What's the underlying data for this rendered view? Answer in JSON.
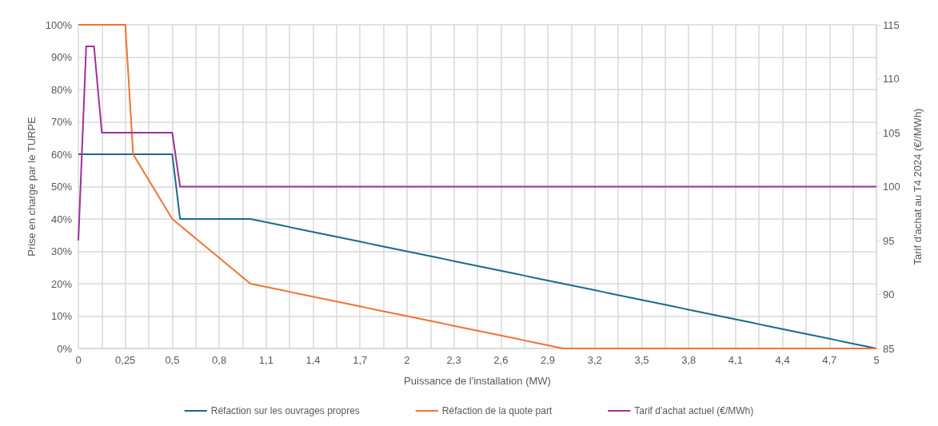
{
  "chart_data": {
    "type": "line",
    "xlabel": "Puissance de l'installation (MW)",
    "ylabel": "Prise en charge par le TURPE",
    "y2label": "Tarif d'achat au T4 2024 (€//MWh)",
    "categories": [
      "0",
      null,
      null,
      null,
      null,
      null,
      "0,25",
      null,
      null,
      null,
      null,
      null,
      "0,5",
      null,
      null,
      null,
      null,
      null,
      "0,8",
      null,
      null,
      null,
      null,
      null,
      "1,1",
      null,
      null,
      null,
      null,
      null,
      "1,4",
      null,
      null,
      null,
      null,
      null,
      "1,7",
      null,
      null,
      null,
      null,
      null,
      "2",
      null,
      null,
      null,
      null,
      null,
      "2,3",
      null,
      null,
      null,
      null,
      null,
      "2,6",
      null,
      null,
      null,
      null,
      null,
      "2,9",
      null,
      null,
      null,
      null,
      null,
      "3,2",
      null,
      null,
      null,
      null,
      null,
      "3,5",
      null,
      null,
      null,
      null,
      null,
      "3,8",
      null,
      null,
      null,
      null,
      null,
      "4,1",
      null,
      null,
      null,
      null,
      null,
      "4,4",
      null,
      null,
      null,
      null,
      null,
      "4,7",
      null,
      null,
      null,
      null,
      null,
      "5"
    ],
    "series": [
      {
        "name": "Réfaction sur les ouvrages propres",
        "color": "#1b6a8c",
        "values": [
          60,
          60,
          60,
          60,
          60,
          60,
          60,
          60,
          60,
          60,
          60,
          60,
          60,
          40,
          40,
          40,
          40,
          40,
          40,
          40,
          40,
          40,
          40,
          39.5,
          39,
          38.5,
          38,
          37.5,
          37,
          36.5,
          36,
          35.5,
          35,
          34.5,
          34,
          33.5,
          33,
          32.5,
          32,
          31.5,
          31,
          30.5,
          30,
          29.5,
          29,
          28.5,
          28,
          27.5,
          27,
          26.5,
          26,
          25.5,
          25,
          24.5,
          24,
          23.5,
          23,
          22.5,
          22,
          21.5,
          21,
          20.5,
          20,
          19.5,
          19,
          18.5,
          18,
          17.5,
          17,
          16.5,
          16,
          15.5,
          15,
          14.5,
          14,
          13.5,
          13,
          12.5,
          12,
          11.5,
          11,
          10.5,
          10,
          9.5,
          9,
          8.5,
          8,
          7.5,
          7,
          6.5,
          6,
          5.5,
          5,
          4.5,
          4,
          3.5,
          3,
          2.5,
          2,
          1.5,
          1,
          0.5,
          0
        ]
      },
      {
        "name": "Réfaction de la quote part",
        "color": "#ef7433",
        "values": [
          100,
          100,
          100,
          100,
          100,
          100,
          100,
          60,
          56,
          52,
          48,
          44,
          40,
          38,
          36,
          34,
          32,
          30,
          28,
          26,
          24,
          22,
          20,
          19.5,
          19,
          18.5,
          18,
          17.5,
          17,
          16.5,
          16,
          15.5,
          15,
          14.5,
          14,
          13.5,
          13,
          12.5,
          12,
          11.5,
          11,
          10.5,
          10,
          9.5,
          9,
          8.5,
          8,
          7.5,
          7,
          6.5,
          6,
          5.5,
          5,
          4.5,
          4,
          3.5,
          3,
          2.5,
          2,
          1.5,
          1,
          0.5,
          0,
          0,
          0,
          0,
          0,
          0,
          0,
          0,
          0,
          0,
          0,
          0,
          0,
          0,
          0,
          0,
          0,
          0,
          0,
          0,
          0,
          0,
          0,
          0,
          0,
          0,
          0,
          0,
          0,
          0,
          0,
          0,
          0,
          0,
          0,
          0,
          0,
          0,
          0,
          0,
          0
        ]
      },
      {
        "name": "Tarif d'achat actuel (€/MWh)",
        "color": "#a0309a",
        "axis": "y2",
        "values": [
          95,
          113,
          113,
          105,
          105,
          105,
          105,
          105,
          105,
          105,
          105,
          105,
          105,
          100,
          100,
          100,
          100,
          100,
          100,
          100,
          100,
          100,
          100,
          100,
          100,
          100,
          100,
          100,
          100,
          100,
          100,
          100,
          100,
          100,
          100,
          100,
          100,
          100,
          100,
          100,
          100,
          100,
          100,
          100,
          100,
          100,
          100,
          100,
          100,
          100,
          100,
          100,
          100,
          100,
          100,
          100,
          100,
          100,
          100,
          100,
          100,
          100,
          100,
          100,
          100,
          100,
          100,
          100,
          100,
          100,
          100,
          100,
          100,
          100,
          100,
          100,
          100,
          100,
          100,
          100,
          100,
          100,
          100,
          100,
          100,
          100,
          100,
          100,
          100,
          100,
          100,
          100,
          100,
          100,
          100,
          100,
          100,
          100,
          100,
          100,
          100,
          100,
          100
        ]
      }
    ],
    "ylim": [
      0,
      100
    ],
    "yticks": [
      {
        "value": 0,
        "label": "0%"
      },
      {
        "value": 10,
        "label": "10%"
      },
      {
        "value": 20,
        "label": "20%"
      },
      {
        "value": 30,
        "label": "30%"
      },
      {
        "value": 40,
        "label": "40%"
      },
      {
        "value": 50,
        "label": "50%"
      },
      {
        "value": 60,
        "label": "60%"
      },
      {
        "value": 70,
        "label": "70%"
      },
      {
        "value": 80,
        "label": "80%"
      },
      {
        "value": 90,
        "label": "90%"
      },
      {
        "value": 100,
        "label": "100%"
      }
    ],
    "y2lim": [
      85,
      115
    ],
    "y2ticks": [
      85,
      90,
      95,
      100,
      105,
      110,
      115
    ],
    "grid": true,
    "legend": "bottom",
    "marker": "none",
    "line_style": "solid"
  }
}
